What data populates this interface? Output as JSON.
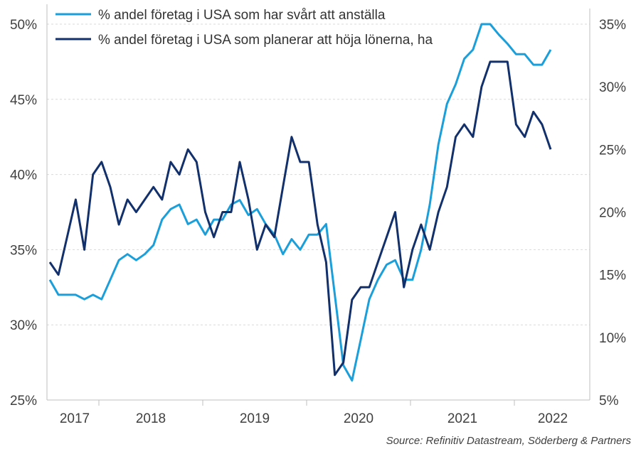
{
  "chart_data": {
    "type": "line",
    "x_tick_labels": [
      "2017",
      "2018",
      "2019",
      "2020",
      "2021",
      "2022"
    ],
    "y_left": {
      "range": [
        25,
        50
      ],
      "ticks": [
        "25%",
        "30%",
        "35%",
        "40%",
        "45%",
        "50%"
      ]
    },
    "y_right": {
      "range": [
        5,
        35
      ],
      "ticks": [
        "5%",
        "10%",
        "15%",
        "20%",
        "25%",
        "30%",
        "35%"
      ]
    },
    "grid": "horizontal-dashed",
    "legend_position": "top",
    "series": [
      {
        "name": "% andel företag i USA som har svårt att anställa",
        "axis": "left",
        "color": "#1a9fdb",
        "values": [
          33,
          32,
          32,
          32,
          31.7,
          32,
          31.7,
          33,
          34.3,
          34.7,
          34.3,
          34.7,
          35.3,
          37,
          37.7,
          38,
          36.7,
          37,
          36,
          37,
          37,
          38,
          38.3,
          37.3,
          37.7,
          36.7,
          36,
          34.7,
          35.7,
          35,
          36,
          36,
          36.7,
          32,
          27.3,
          26.3,
          29,
          31.7,
          33,
          34,
          34.3,
          33,
          33,
          35,
          38,
          42,
          44.7,
          46,
          47.7,
          48.3,
          50,
          50,
          49.3,
          48.7,
          48,
          48,
          47.3,
          47.3,
          48.3
        ]
      },
      {
        "name": "% andel företag i USA som planerar att höja lönerna, ha",
        "axis": "right",
        "color": "#12306b",
        "values": [
          16,
          15,
          18,
          21,
          17,
          23,
          24,
          22,
          19,
          21,
          20,
          21,
          22,
          21,
          24,
          23,
          25,
          24,
          20,
          18,
          20,
          20,
          24,
          21,
          17,
          19,
          18,
          22,
          26,
          24,
          24,
          19,
          16,
          7,
          8,
          13,
          14,
          14,
          16,
          18,
          20,
          14,
          17,
          19,
          17,
          20,
          22,
          26,
          27,
          26,
          30,
          32,
          32,
          32,
          27,
          26,
          28,
          27,
          25
        ]
      }
    ]
  },
  "source": "Source: Refinitiv Datastream, Söderberg & Partners"
}
